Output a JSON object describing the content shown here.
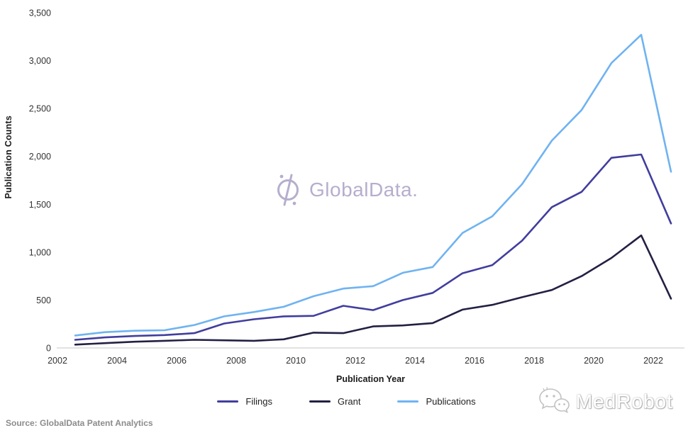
{
  "chart_data": {
    "type": "line",
    "title": "",
    "xlabel": "Publication Year",
    "ylabel": "Publication Counts",
    "categories": [
      2002,
      2003,
      2004,
      2005,
      2006,
      2007,
      2008,
      2009,
      2010,
      2011,
      2012,
      2013,
      2014,
      2015,
      2016,
      2017,
      2018,
      2019,
      2020,
      2021,
      2022
    ],
    "x_tick_labels": [
      "2002",
      "2004",
      "2006",
      "2008",
      "2010",
      "2012",
      "2014",
      "2016",
      "2018",
      "2020",
      "2022"
    ],
    "y_tick_values": [
      0,
      500,
      1000,
      1500,
      2000,
      2500,
      3000,
      3500
    ],
    "y_tick_labels": [
      "0",
      "500",
      "1,000",
      "1,500",
      "2,000",
      "2,500",
      "3,000",
      "3,500"
    ],
    "ylim": [
      0,
      3500
    ],
    "grid": false,
    "legend_position": "bottom",
    "series": [
      {
        "name": "Filings",
        "color": "#413e9e",
        "values": [
          85,
          110,
          125,
          135,
          155,
          255,
          300,
          330,
          335,
          440,
          395,
          500,
          575,
          780,
          865,
          1120,
          1470,
          1630,
          1985,
          2020,
          1300
        ]
      },
      {
        "name": "Grant",
        "color": "#232043",
        "values": [
          35,
          50,
          65,
          75,
          85,
          80,
          75,
          90,
          160,
          155,
          225,
          235,
          260,
          400,
          450,
          530,
          605,
          750,
          940,
          1175,
          515
        ]
      },
      {
        "name": "Publications",
        "color": "#6fb3f1",
        "values": [
          130,
          165,
          180,
          185,
          240,
          330,
          375,
          430,
          540,
          620,
          645,
          785,
          845,
          1200,
          1375,
          1710,
          2165,
          2485,
          2975,
          3270,
          1840
        ]
      }
    ]
  },
  "watermark": {
    "brand": "GlobalData."
  },
  "footer": {
    "source": "Source: GlobalData Patent Analytics",
    "badge": "MedRobot"
  },
  "colors": {
    "axis_line": "#d9d9d9",
    "tick_text": "#333333",
    "watermark": "#b3aacb",
    "badge_outline": "#c2c2c2"
  }
}
